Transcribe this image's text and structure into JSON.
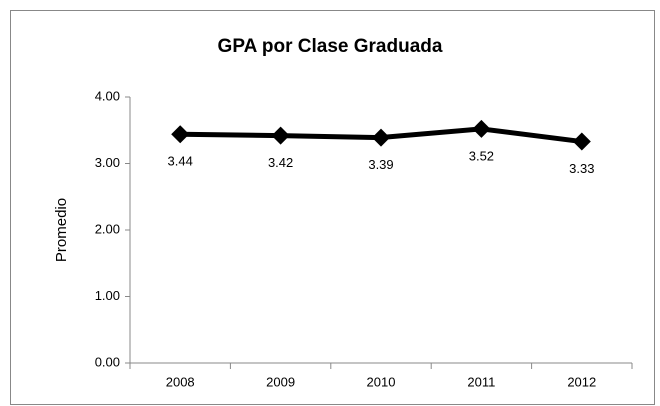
{
  "chart_data": {
    "type": "line",
    "title": "GPA por Clase Graduada",
    "y_label": "Promedio",
    "categories": [
      "2008",
      "2009",
      "2010",
      "2011",
      "2012"
    ],
    "values": [
      3.44,
      3.42,
      3.39,
      3.52,
      3.33
    ],
    "color": "#000000",
    "ylim": [
      0,
      4
    ],
    "yticks": [
      {
        "value": 0,
        "label": "0.00"
      },
      {
        "value": 1,
        "label": "1.00"
      },
      {
        "value": 2,
        "label": "2.00"
      },
      {
        "value": 3,
        "label": "3.00"
      },
      {
        "value": 4,
        "label": "4.00"
      }
    ],
    "grid": false
  }
}
